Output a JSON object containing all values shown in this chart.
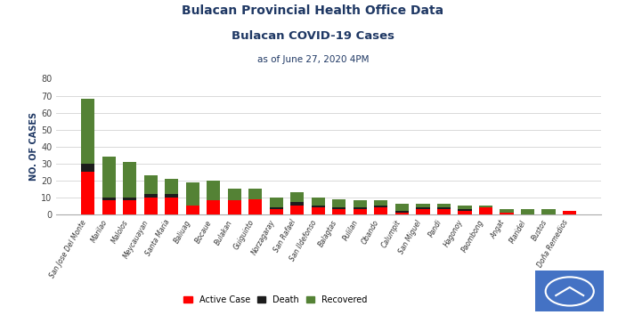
{
  "title1": "Bulacan Provincial Health Office Data",
  "title2": "Bulacan COVID-19 Cases",
  "subtitle": "as of June 27, 2020 4PM",
  "ylabel": "NO. OF CASES",
  "categories": [
    "San Jose Del Monte",
    "Marilao",
    "Malolos",
    "Meycauayan",
    "Santa Maria",
    "Baliuag",
    "Bocaue",
    "Bulakan",
    "Guiguinto",
    "Norzagaray",
    "San Rafael",
    "San Ildefonso",
    "Balagtas",
    "Pulilan",
    "Obando",
    "Calumpit",
    "San Miguel",
    "Pandi",
    "Hagonoy",
    "Paombong",
    "Angat",
    "Plaridel",
    "Bustos",
    "Doña Remedios"
  ],
  "active": [
    25,
    8,
    8,
    10,
    10,
    5,
    8,
    8,
    9,
    3,
    5,
    4,
    3,
    3,
    4,
    1,
    3,
    3,
    2,
    4,
    1,
    0,
    0,
    2
  ],
  "death": [
    5,
    2,
    2,
    2,
    2,
    0,
    0,
    0,
    0,
    1,
    2,
    1,
    1,
    1,
    1,
    1,
    1,
    1,
    1,
    0,
    0,
    0,
    0,
    0
  ],
  "recovered": [
    38,
    24,
    21,
    11,
    9,
    14,
    12,
    7,
    6,
    6,
    6,
    5,
    5,
    4,
    3,
    4,
    2,
    2,
    2,
    1,
    2,
    3,
    3,
    0
  ],
  "active_color": "#FF0000",
  "death_color": "#1C1C1C",
  "recovered_color": "#548235",
  "ylim": [
    0,
    80
  ],
  "yticks": [
    0,
    10,
    20,
    30,
    40,
    50,
    60,
    70,
    80
  ],
  "grid_color": "#D9D9D9",
  "title_color": "#1F3864",
  "legend_labels": [
    "Active Case",
    "Death",
    "Recovered"
  ],
  "logo_color": "#4472C4"
}
